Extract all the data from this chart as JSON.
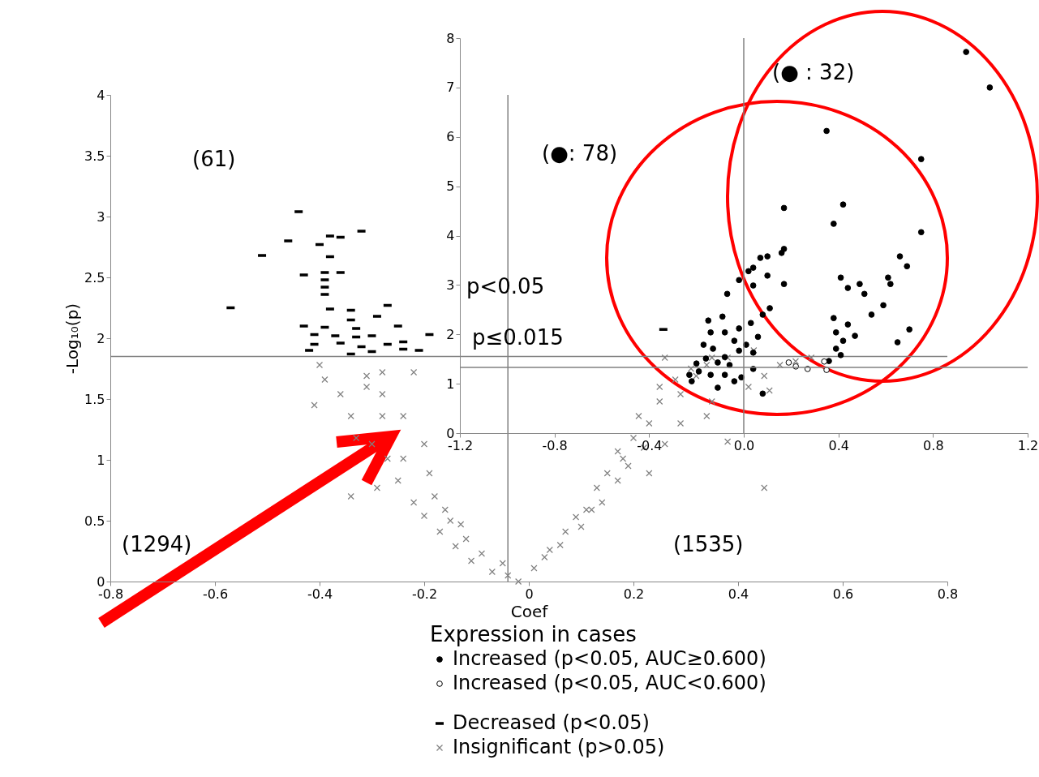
{
  "chart_data": [
    {
      "type": "scatter",
      "xlabel": "Coef",
      "ylabel": "-Log₁₀(p)",
      "xlim": [
        -0.8,
        0.8
      ],
      "xticks": [
        -0.8,
        -0.6,
        -0.4,
        -0.2,
        0,
        0.2,
        0.4,
        0.6,
        0.8
      ],
      "ylim": [
        0,
        4
      ],
      "yticks": [
        0,
        0.5,
        1,
        1.5,
        2,
        2.5,
        3,
        3.5,
        4
      ],
      "legend": "bottom",
      "series": [
        {
          "name": "Decreased (p<0.05)",
          "color": "#000000",
          "x": [
            -0.57,
            -0.51,
            -0.46,
            -0.44,
            -0.38,
            -0.36,
            -0.32,
            -0.4,
            -0.38,
            -0.43,
            -0.39,
            -0.36,
            -0.39,
            -0.39,
            -0.39,
            -0.38,
            -0.34,
            -0.27,
            -0.29,
            -0.43,
            -0.39,
            -0.34,
            -0.33,
            -0.37,
            -0.41,
            -0.33,
            -0.3,
            -0.25,
            -0.19,
            -0.41,
            -0.36,
            -0.32,
            -0.27,
            -0.24,
            -0.21,
            -0.42,
            -0.34,
            -0.3,
            -0.24
          ],
          "values": [
            2.25,
            2.68,
            2.8,
            3.04,
            2.84,
            2.83,
            2.88,
            2.77,
            2.67,
            2.52,
            2.54,
            2.54,
            2.48,
            2.42,
            2.36,
            2.24,
            2.23,
            2.27,
            2.18,
            2.1,
            2.09,
            2.15,
            2.08,
            2.02,
            2.03,
            2.01,
            2.02,
            2.1,
            2.03,
            1.95,
            1.96,
            1.93,
            1.95,
            1.91,
            1.9,
            1.9,
            1.87,
            1.89,
            1.97
          ]
        },
        {
          "name": "Insignificant (p>0.05)",
          "color": "#808080",
          "marker": "cross",
          "x": [
            -0.4,
            -0.41,
            -0.39,
            -0.36,
            -0.34,
            -0.31,
            -0.33,
            -0.3,
            -0.28,
            -0.27,
            -0.25,
            -0.24,
            -0.22,
            -0.2,
            -0.19,
            -0.17,
            -0.16,
            -0.14,
            -0.13,
            -0.11,
            -0.09,
            -0.07,
            -0.04,
            -0.02,
            -0.34,
            -0.29,
            -0.31,
            -0.28,
            -0.22,
            -0.28,
            -0.24,
            -0.2,
            0.01,
            0.04,
            0.07,
            0.09,
            0.11,
            0.13,
            0.15,
            0.17,
            0.18,
            0.2,
            0.21,
            0.23,
            0.25,
            0.25,
            0.28,
            0.29,
            0.31,
            0.32,
            0.34,
            0.35,
            0.38,
            0.42,
            0.45,
            0.48,
            0.51,
            0.54,
            0.38,
            0.45,
            0.34,
            0.26,
            0.29,
            0.17,
            0.12,
            0.35,
            0.43,
            0.26,
            0.23,
            0.46,
            -0.12,
            -0.05,
            0.03,
            0.06,
            -0.18,
            -0.15,
            0.1,
            0.14,
            0.19,
            0.22
          ],
          "values": [
            1.78,
            1.45,
            1.66,
            1.54,
            1.36,
            1.6,
            1.18,
            1.13,
            1.36,
            1.01,
            0.83,
            1.01,
            0.65,
            0.54,
            0.89,
            0.41,
            0.59,
            0.29,
            0.47,
            0.17,
            0.23,
            0.08,
            0.05,
            0,
            0.7,
            0.77,
            1.69,
            1.72,
            1.72,
            1.54,
            1.36,
            1.13,
            0.11,
            0.26,
            0.41,
            0.53,
            0.59,
            0.77,
            0.89,
            1.07,
            1.01,
            1.18,
            1.36,
            1.3,
            1.48,
            1.6,
            1.66,
            1.54,
            1.75,
            1.69,
            1.78,
            1.84,
            1.84,
            1.6,
            1.69,
            1.78,
            1.81,
            1.84,
            1.15,
            0.77,
            1.36,
            1.13,
            1.3,
            0.83,
            0.59,
            1.48,
            1.9,
            1.84,
            0.89,
            1.57,
            0.35,
            0.15,
            0.2,
            0.3,
            0.7,
            0.5,
            0.45,
            0.65,
            0.95,
            1.1
          ]
        }
      ],
      "ref_lines": [
        {
          "axis": "y",
          "value": 1.85,
          "color": "#808080"
        },
        {
          "axis": "x",
          "value": -0.04,
          "color": "#808080"
        }
      ],
      "annotations": [
        "(61)",
        "(1294)",
        "(1535)",
        "p<0.05"
      ]
    },
    {
      "type": "scatter",
      "xlim": [
        -1.2,
        1.2
      ],
      "xticks": [
        -1.2,
        -0.8,
        -0.4,
        {
          "value": 0,
          "label": "0.0"
        },
        0.4,
        0.8,
        1.2
      ],
      "ylim": [
        0,
        8
      ],
      "yticks": [
        0,
        1,
        2,
        3,
        4,
        5,
        6,
        7,
        8
      ],
      "legend": "bottom",
      "legend_title": "Expression in cases",
      "series": [
        {
          "name": "Increased (p<0.05, AUC≥0.600)",
          "color": "#000000",
          "marker": "circle",
          "x": [
            0.94,
            1.04,
            0.75,
            0.35,
            0.42,
            0.38,
            0.17,
            0.75,
            0.66,
            0.69,
            0.61,
            0.62,
            0.49,
            0.41,
            0.44,
            0.51,
            0.54,
            0.59,
            0.7,
            0.65,
            0.38,
            0.39,
            0.44,
            0.47,
            0.42,
            0.39,
            0.41,
            0.36,
            0.17,
            0.16,
            0.07,
            0.1,
            0.04,
            0.02,
            0.1,
            0.17,
            -0.02,
            -0.07,
            0.04,
            0.11,
            0.08,
            0.03,
            -0.02,
            -0.09,
            -0.14,
            -0.08,
            -0.04,
            0.01,
            0.04,
            -0.02,
            -0.13,
            -0.16,
            -0.2,
            -0.11,
            -0.06,
            -0.19,
            -0.14,
            -0.08,
            -0.23,
            -0.22,
            -0.11,
            0.08,
            -0.04,
            0.04,
            -0.01,
            -0.17,
            -0.15,
            0.06,
            -0.08
          ],
          "values": [
            7.72,
            7.0,
            5.55,
            6.12,
            4.63,
            4.24,
            4.56,
            4.07,
            3.58,
            3.38,
            3.15,
            3.02,
            3.02,
            3.15,
            2.94,
            2.82,
            2.4,
            2.59,
            2.1,
            1.84,
            2.33,
            2.04,
            2.2,
            1.97,
            1.87,
            1.71,
            1.58,
            1.46,
            3.73,
            3.65,
            3.55,
            3.58,
            3.35,
            3.28,
            3.19,
            3.02,
            3.1,
            2.82,
            2.99,
            2.53,
            2.4,
            2.23,
            2.12,
            2.36,
            2.04,
            2.04,
            1.87,
            1.79,
            1.63,
            1.67,
            1.71,
            1.51,
            1.41,
            1.43,
            1.38,
            1.25,
            1.18,
            1.18,
            1.18,
            1.05,
            0.92,
            0.8,
            1.05,
            1.3,
            1.13,
            1.79,
            2.28,
            1.95,
            1.54
          ]
        },
        {
          "name": "Increased (p<0.05, AUC<0.600)",
          "color": "#000000",
          "marker": "open-circle",
          "x": [
            0.19,
            0.22,
            0.27,
            0.34,
            0.35
          ],
          "values": [
            1.43,
            1.35,
            1.3,
            1.45,
            1.28
          ]
        },
        {
          "color": "#000000",
          "x": [
            -0.34
          ],
          "values": [
            2.1
          ]
        }
      ],
      "ref_lines": [
        {
          "axis": "y",
          "value": 1.33,
          "color": "#808080"
        },
        {
          "axis": "x",
          "value": 0,
          "color": "#808080"
        }
      ],
      "annotations": [
        "(●: 78)",
        "(● : 32)",
        "p≤0.015"
      ]
    }
  ]
}
